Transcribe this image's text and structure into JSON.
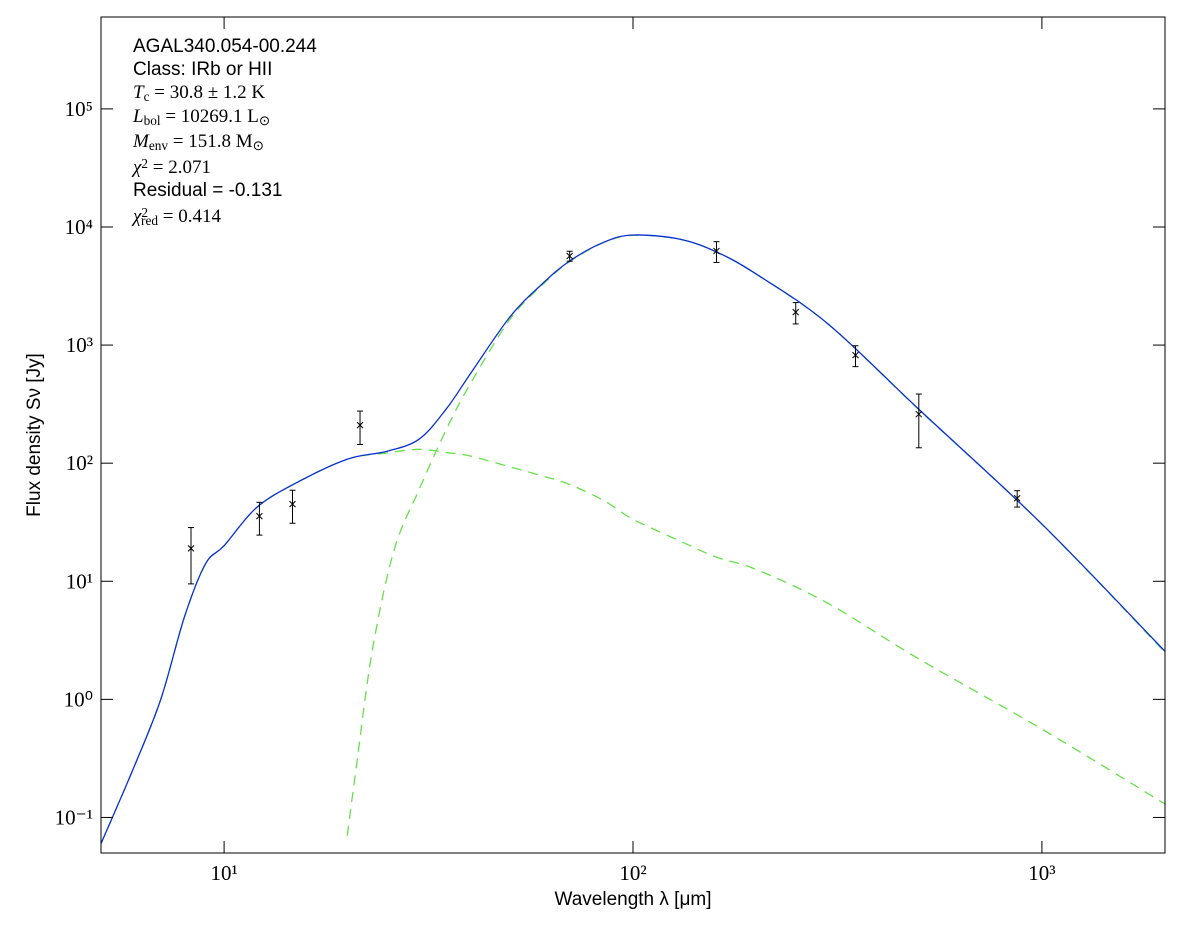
{
  "chart_data": {
    "type": "line",
    "xlabel": "Wavelength λ [μm]",
    "ylabel": "Flux density Sν [Jy]",
    "xscale": "log",
    "yscale": "log",
    "xlim": [
      5,
      2000
    ],
    "ylim": [
      0.05,
      600000
    ],
    "xticks": [
      {
        "value": 10,
        "label": "10¹"
      },
      {
        "value": 100,
        "label": "10²"
      },
      {
        "value": 1000,
        "label": "10³"
      }
    ],
    "yticks": [
      {
        "value": 0.1,
        "label": "10⁻¹"
      },
      {
        "value": 1,
        "label": "10⁰"
      },
      {
        "value": 10,
        "label": "10¹"
      },
      {
        "value": 100,
        "label": "10²"
      },
      {
        "value": 1000,
        "label": "10³"
      },
      {
        "value": 10000,
        "label": "10⁴"
      },
      {
        "value": 100000,
        "label": "10⁵"
      }
    ],
    "annotations": [
      {
        "parts": [
          {
            "t": "AGAL340.054-00.244"
          }
        ]
      },
      {
        "parts": [
          {
            "t": "Class: IRb or HII"
          }
        ]
      },
      {
        "math": true,
        "parts": [
          {
            "t": "T",
            "i": true
          },
          {
            "t": "c",
            "pos": "sub"
          },
          {
            "t": " = 30.8 ± 1.2 K"
          }
        ]
      },
      {
        "math": true,
        "parts": [
          {
            "t": "L",
            "i": true
          },
          {
            "t": "bol",
            "pos": "sub"
          },
          {
            "t": " = 10269.1 L"
          },
          {
            "t": "⊙",
            "pos": "sub"
          }
        ]
      },
      {
        "math": true,
        "parts": [
          {
            "t": "M",
            "i": true
          },
          {
            "t": "env",
            "pos": "sub"
          },
          {
            "t": " = 151.8 M"
          },
          {
            "t": "⊙",
            "pos": "sub"
          }
        ]
      },
      {
        "math": true,
        "parts": [
          {
            "t": "χ",
            "i": true
          },
          {
            "t": "2",
            "pos": "sup"
          },
          {
            "t": " = 2.071"
          }
        ]
      },
      {
        "parts": [
          {
            "t": "Residual = -0.131"
          }
        ]
      },
      {
        "math": true,
        "parts": [
          {
            "t": "χ",
            "i": true
          },
          {
            "t": "2",
            "pos": "sup"
          },
          {
            "t": "red",
            "pos": "sub"
          },
          {
            "t": " = 0.414"
          }
        ]
      }
    ],
    "points": {
      "color": "#000000",
      "x": [
        8.3,
        12.2,
        14.7,
        21.5,
        70,
        160,
        250,
        350,
        500,
        870
      ],
      "y": [
        19,
        35.6,
        45,
        210,
        5680,
        6260,
        1900,
        822,
        260,
        50.5
      ],
      "yerr": [
        9.5,
        11,
        14,
        66,
        550,
        1250,
        390,
        165,
        125,
        8
      ]
    },
    "curves": [
      {
        "color": "#66e04a",
        "dash": true,
        "x": [
          5,
          6,
          7,
          8,
          9,
          10,
          12,
          15,
          20,
          25,
          30,
          35,
          40,
          50,
          60,
          70,
          85,
          100,
          130,
          160,
          200,
          300,
          500,
          1000,
          2000
        ],
        "y": [
          0.06,
          0.26,
          1.0,
          5,
          14,
          20,
          42,
          68,
          108,
          122,
          131,
          123,
          115,
          93,
          78,
          66,
          48,
          33.5,
          22,
          16,
          12.6,
          6.5,
          2.2,
          0.56,
          0.13
        ]
      },
      {
        "color": "#66e04a",
        "dash": true,
        "x": [
          20,
          21,
          23,
          26,
          30,
          35,
          40,
          50,
          60,
          70,
          85,
          100,
          130,
          160,
          200,
          300,
          500,
          1000,
          2000
        ],
        "y": [
          0.07,
          0.25,
          2.5,
          18,
          60,
          195,
          470,
          1650,
          3230,
          5090,
          7400,
          8500,
          7870,
          6130,
          3990,
          1505,
          284,
          30.4,
          2.5
        ]
      },
      {
        "color": "#0a2ed6",
        "dash": false,
        "x": [
          5,
          6,
          7,
          8,
          9,
          10,
          12,
          15,
          20,
          25,
          30,
          35,
          40,
          50,
          60,
          70,
          85,
          100,
          130,
          160,
          200,
          300,
          500,
          1000,
          2000
        ],
        "y": [
          0.06,
          0.26,
          1.0,
          5,
          14,
          20,
          42,
          68,
          108,
          126,
          160,
          290,
          570,
          1730,
          3300,
          5150,
          7450,
          8550,
          7900,
          6150,
          4000,
          1510,
          286,
          30.5,
          2.55
        ]
      }
    ]
  }
}
